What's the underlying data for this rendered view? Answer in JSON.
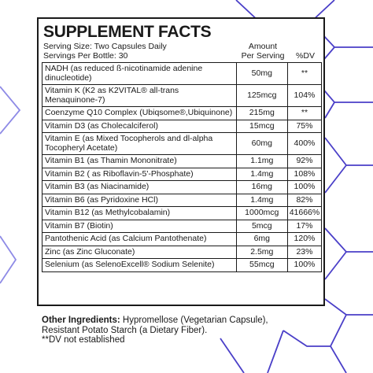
{
  "supplement": {
    "title": "SUPPLEMENT FACTS",
    "serving_size": "Serving Size: Two Capsules Daily",
    "servings_per_bottle": "Servings Per Bottle: 30",
    "amount_header_line1": "Amount",
    "amount_header_line2": "Per Serving",
    "dv_header": "%DV",
    "rows": [
      {
        "name": "NADH (as reduced ß-nicotinamide adenine dinucleotide)",
        "amount": "50mg",
        "dv": "**"
      },
      {
        "name": "Vitamin K (K2 as K2VITAL® all-trans Menaquinone-7)",
        "amount": "125mcg",
        "dv": "104%"
      },
      {
        "name": "Coenzyme Q10 Complex (Ubiqsome®,Ubiquinone)",
        "amount": "215mg",
        "dv": "**"
      },
      {
        "name": "Vitamin D3 (as Cholecalciferol)",
        "amount": "15mcg",
        "dv": "75%"
      },
      {
        "name": "Vitamin E (as Mixed Tocopherols and dl-alpha Tocopheryl Acetate)",
        "amount": "60mg",
        "dv": "400%"
      },
      {
        "name": "Vitamin B1 (as Thamin Mononitrate)",
        "amount": "1.1mg",
        "dv": "92%"
      },
      {
        "name": "Vitamin B2 ( as Riboflavin-5'-Phosphate)",
        "amount": "1.4mg",
        "dv": "108%"
      },
      {
        "name": "Vitamin B3 (as Niacinamide)",
        "amount": "16mg",
        "dv": "100%"
      },
      {
        "name": "Vitamin B6 (as Pyridoxine HCl)",
        "amount": "1.4mg",
        "dv": "82%"
      },
      {
        "name": "Vitamin B12 (as Methylcobalamin)",
        "amount": "1000mcg",
        "dv": "41666%"
      },
      {
        "name": "Vitamin B7 (Biotin)",
        "amount": "5mcg",
        "dv": "17%"
      },
      {
        "name": "Pantothenic Acid (as Calcium Pantothenate)",
        "amount": "6mg",
        "dv": "120%"
      },
      {
        "name": "Zinc (as Zinc Gluconate)",
        "amount": "2.5mg",
        "dv": "23%"
      },
      {
        "name": "Selenium (as SelenoExcell® Sodium Selenite)",
        "amount": "55mcg",
        "dv": "100%"
      }
    ],
    "other_ingredients_label": "Other Ingredients:",
    "other_ingredients_text": " Hypromellose (Vegetarian Capsule), Resistant Potato Starch (a Dietary Fiber).",
    "dv_note": "**DV not established"
  },
  "colors": {
    "hex_pattern_primary": "#4a3fc8",
    "hex_pattern_secondary": "#8e8ae6",
    "text": "#1a1a1a",
    "border": "#1a1a1a"
  }
}
